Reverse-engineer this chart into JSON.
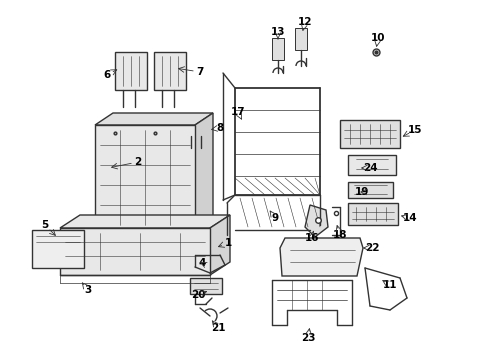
{
  "background_color": "#ffffff",
  "line_color": "#333333",
  "label_color": "#000000",
  "label_fontsize": 7.5,
  "lw": 0.7,
  "fig_w": 4.89,
  "fig_h": 3.6,
  "dpi": 100
}
